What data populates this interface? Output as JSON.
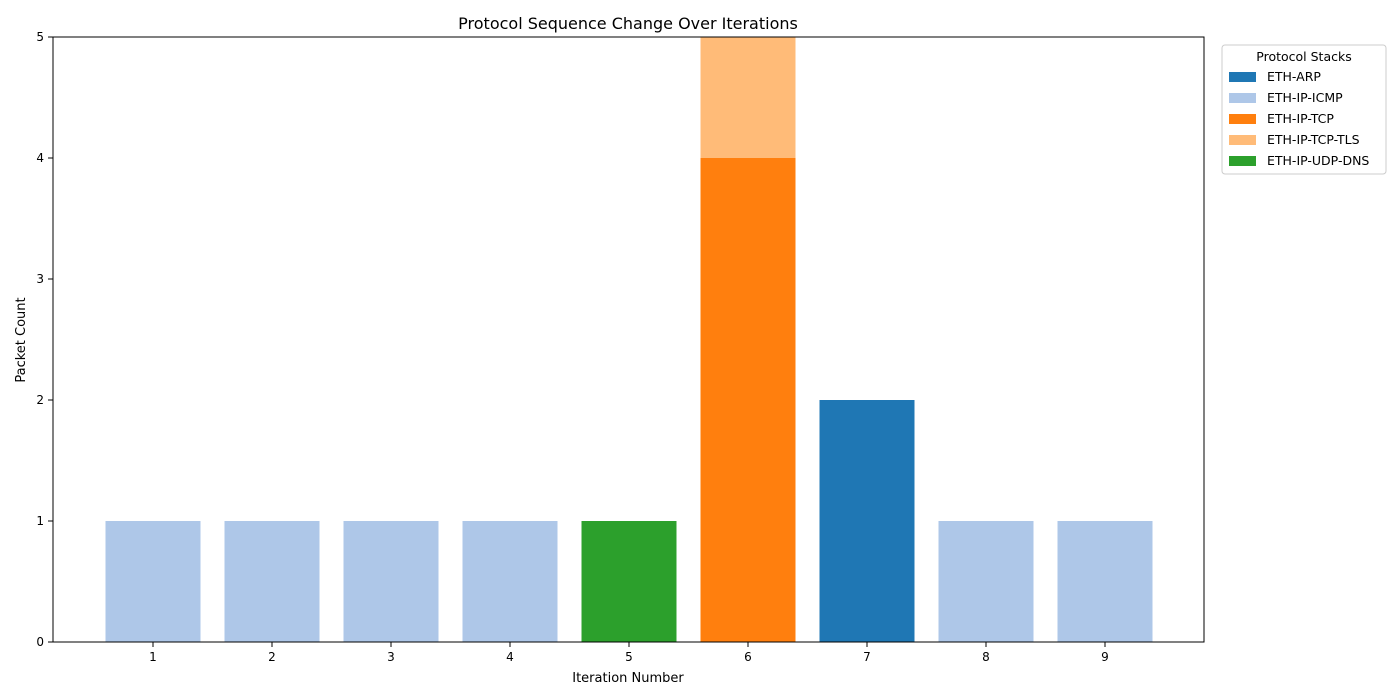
{
  "chart_data": {
    "type": "bar",
    "stacked": true,
    "title": "Protocol Sequence Change Over Iterations",
    "xlabel": "Iteration Number",
    "ylabel": "Packet Count",
    "categories": [
      "1",
      "2",
      "3",
      "4",
      "5",
      "6",
      "7",
      "8",
      "9"
    ],
    "ylim": [
      0,
      5
    ],
    "yticks": [
      0,
      1,
      2,
      3,
      4,
      5
    ],
    "grid": false,
    "legend": {
      "title": "Protocol Stacks",
      "placement": "upper-right outside"
    },
    "series": [
      {
        "name": "ETH-ARP",
        "color": "#1f77b4",
        "values": [
          0,
          0,
          0,
          0,
          0,
          0,
          2,
          0,
          0
        ]
      },
      {
        "name": "ETH-IP-ICMP",
        "color": "#aec7e8",
        "values": [
          1,
          1,
          1,
          1,
          0,
          0,
          0,
          1,
          1
        ]
      },
      {
        "name": "ETH-IP-TCP",
        "color": "#ff7f0e",
        "values": [
          0,
          0,
          0,
          0,
          0,
          4,
          0,
          0,
          0
        ]
      },
      {
        "name": "ETH-IP-TCP-TLS",
        "color": "#ffbb78",
        "values": [
          0,
          0,
          0,
          0,
          0,
          1,
          0,
          0,
          0
        ]
      },
      {
        "name": "ETH-IP-UDP-DNS",
        "color": "#2ca02c",
        "values": [
          0,
          0,
          0,
          0,
          1,
          0,
          0,
          0,
          0
        ]
      }
    ]
  }
}
